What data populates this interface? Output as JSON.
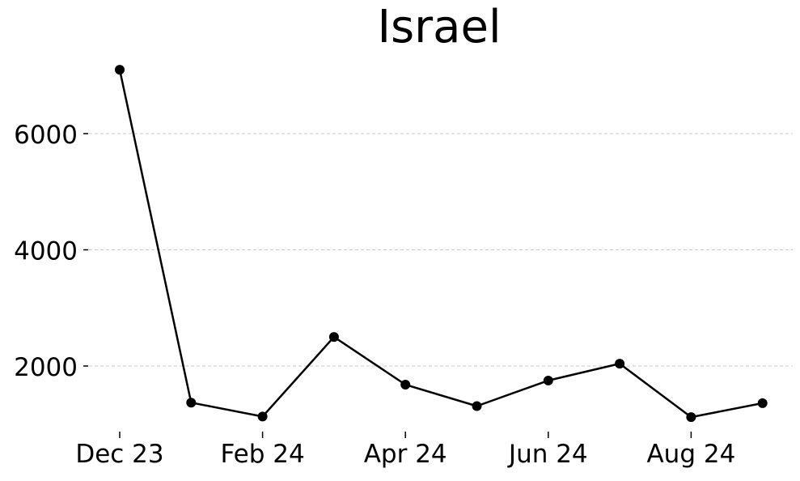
{
  "chart_data": {
    "type": "line",
    "title": "Israel",
    "xlabel": "",
    "ylabel": "",
    "x_tick_labels": [
      "Dec 23",
      "Feb 24",
      "Apr 24",
      "Jun 24",
      "Aug 24"
    ],
    "y_ticks": [
      2000,
      4000,
      6000
    ],
    "ylim": [
      900,
      7300
    ],
    "grid": "horizontal-dashed",
    "series": [
      {
        "name": "",
        "color": "#000000",
        "x": [
          "2023-12",
          "2024-01",
          "2024-02",
          "2024-03",
          "2024-04",
          "2024-05",
          "2024-06",
          "2024-07",
          "2024-08",
          "2024-09"
        ],
        "values": [
          7100,
          1370,
          1130,
          2500,
          1680,
          1310,
          1750,
          2040,
          1120,
          1360
        ]
      }
    ]
  }
}
